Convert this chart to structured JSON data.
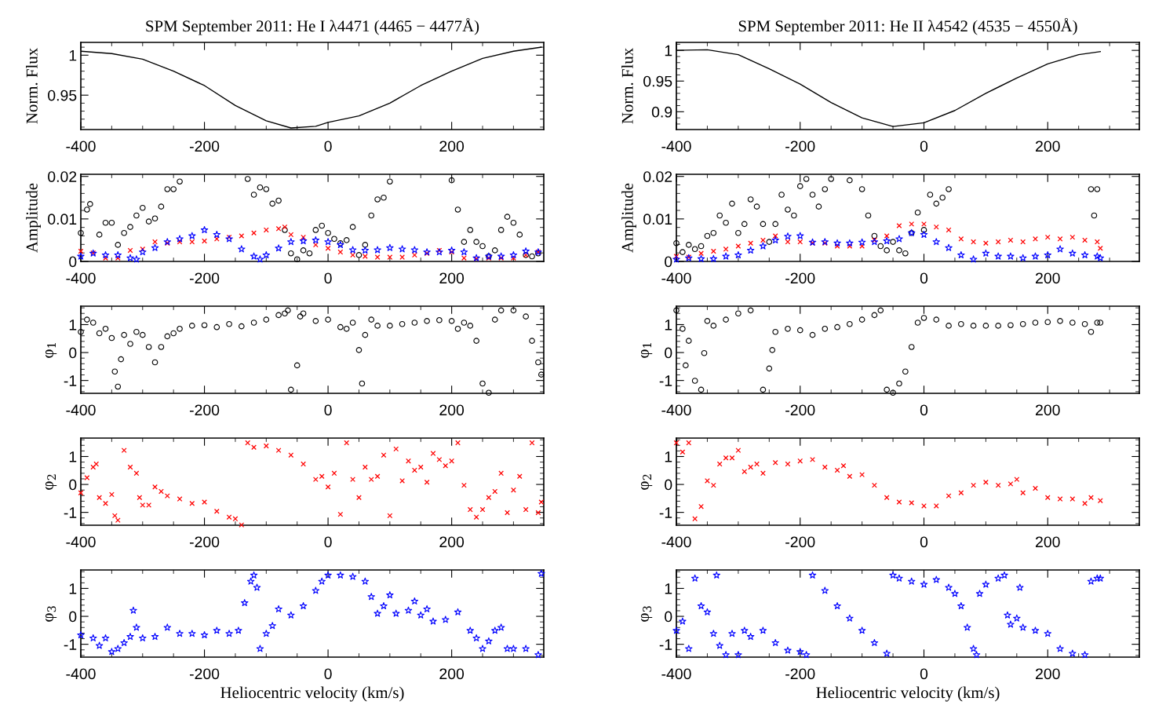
{
  "chart_data": [
    {
      "type": "line",
      "title": "SPM September 2011: He I λ4471 (4465 − 4477Å)",
      "ylabel": "Norm. Flux",
      "xlim": [
        -400,
        349
      ],
      "xticks": [
        -400,
        -200,
        0,
        200
      ],
      "ylim": [
        0.907,
        1.016
      ],
      "yticks": [
        0.95,
        1
      ],
      "series": [
        {
          "color": "#000000",
          "x": [
            -400,
            -350,
            -300,
            -250,
            -200,
            -150,
            -100,
            -60,
            -20,
            0,
            50,
            100,
            150,
            200,
            250,
            300,
            345
          ],
          "values": [
            1.005,
            1.002,
            0.995,
            0.98,
            0.962,
            0.937,
            0.918,
            0.909,
            0.911,
            0.916,
            0.924,
            0.94,
            0.962,
            0.98,
            0.996,
            1.005,
            1.01
          ]
        }
      ]
    },
    {
      "type": "scatter",
      "ylabel": "Amplitude",
      "xlim": [
        -400,
        349
      ],
      "xticks": [
        -400,
        -200,
        0,
        200
      ],
      "ylim": [
        0,
        0.0205
      ],
      "yticks": [
        0,
        0.01,
        0.02
      ],
      "series": [
        {
          "color": "#000000",
          "marker": "circle",
          "x": [
            -400,
            -390,
            -385,
            -370,
            -360,
            -350,
            -340,
            -330,
            -320,
            -310,
            -300,
            -290,
            -280,
            -270,
            -260,
            -250,
            -240,
            -130,
            -120,
            -110,
            -100,
            -90,
            -80,
            -70,
            -60,
            -50,
            -40,
            -30,
            -20,
            -10,
            0,
            10,
            20,
            30,
            40,
            50,
            60,
            70,
            80,
            90,
            100,
            200,
            210,
            220,
            230,
            240,
            250,
            260,
            270,
            280,
            290,
            300,
            310,
            320,
            330,
            340
          ],
          "values": [
            0.0067,
            0.0122,
            0.0135,
            0.0063,
            0.0091,
            0.0091,
            0.0039,
            0.0067,
            0.0081,
            0.0108,
            0.0126,
            0.0094,
            0.0101,
            0.0129,
            0.017,
            0.017,
            0.0188,
            0.0194,
            0.0157,
            0.0174,
            0.017,
            0.0136,
            0.0143,
            0.0074,
            0.0019,
            0.0005,
            0.0026,
            0.0019,
            0.0074,
            0.0084,
            0.0067,
            0.0053,
            0.0043,
            0.005,
            0.0081,
            0.0015,
            0.0039,
            0.0108,
            0.0146,
            0.015,
            0.0188,
            0.0191,
            0.0122,
            0.0046,
            0.0074,
            0.0046,
            0.0036,
            0.0012,
            0.0026,
            0.0074,
            0.0105,
            0.0091,
            0.0063,
            0.0015,
            0.0012,
            0.0019
          ]
        },
        {
          "color": "#ff0000",
          "marker": "cross",
          "x": [
            -400,
            -380,
            -360,
            -340,
            -320,
            -300,
            -280,
            -260,
            -240,
            -220,
            -200,
            -180,
            -160,
            -140,
            -120,
            -100,
            -80,
            -70,
            -60,
            -40,
            -20,
            0,
            20,
            40,
            60,
            80,
            100,
            120,
            140,
            160,
            180,
            200,
            220,
            240,
            260,
            280,
            300,
            320,
            340
          ],
          "values": [
            0.0024,
            0.002,
            0.0008,
            0.0008,
            0.0026,
            0.0029,
            0.0046,
            0.0043,
            0.0046,
            0.0046,
            0.0048,
            0.0053,
            0.0057,
            0.006,
            0.0067,
            0.0074,
            0.0077,
            0.0081,
            0.0063,
            0.0057,
            0.0039,
            0.0031,
            0.0022,
            0.0015,
            0.0012,
            0.001,
            0.001,
            0.001,
            0.0015,
            0.0019,
            0.0026,
            0.0022,
            0.0008,
            0.0006,
            0.0008,
            0.0008,
            0.0008,
            0.0015,
            0.0022
          ]
        },
        {
          "color": "#0000ff",
          "marker": "star",
          "x": [
            -400,
            -380,
            -360,
            -340,
            -320,
            -310,
            -300,
            -280,
            -260,
            -240,
            -220,
            -200,
            -180,
            -160,
            -140,
            -120,
            -110,
            -100,
            -80,
            -60,
            -40,
            -20,
            0,
            20,
            40,
            60,
            80,
            100,
            120,
            140,
            160,
            180,
            200,
            220,
            240,
            260,
            280,
            300,
            320,
            340
          ],
          "values": [
            0.0012,
            0.0019,
            0.0015,
            0.0015,
            0.0008,
            0.0005,
            0.0022,
            0.0032,
            0.0046,
            0.0053,
            0.006,
            0.0074,
            0.0063,
            0.0053,
            0.0029,
            0.0012,
            0.0005,
            0.0015,
            0.0031,
            0.0046,
            0.0048,
            0.005,
            0.0046,
            0.0039,
            0.0027,
            0.0026,
            0.0027,
            0.0032,
            0.0029,
            0.0027,
            0.0022,
            0.0022,
            0.0026,
            0.0022,
            0.0008,
            0.0012,
            0.0012,
            0.0015,
            0.0024,
            0.0022
          ]
        }
      ]
    },
    {
      "type": "scatter",
      "ylabel": "φ$_{1}$",
      "xlim": [
        -400,
        349
      ],
      "xticks": [
        -400,
        -200,
        0,
        200
      ],
      "ylim": [
        -1.46,
        1.66
      ],
      "yticks": [
        -1,
        0,
        1
      ],
      "series": [
        {
          "color": "#000000",
          "marker": "circle",
          "x": [
            -400,
            -390,
            -380,
            -370,
            -360,
            -350,
            -345,
            -340,
            -335,
            -330,
            -320,
            -310,
            -300,
            -290,
            -280,
            -270,
            -260,
            -250,
            -240,
            -220,
            -200,
            -180,
            -160,
            -140,
            -120,
            -100,
            -80,
            -70,
            -65,
            -60,
            -50,
            -45,
            -40,
            -20,
            0,
            20,
            30,
            40,
            50,
            55,
            60,
            70,
            80,
            100,
            120,
            140,
            160,
            180,
            200,
            210,
            220,
            230,
            240,
            250,
            260,
            270,
            280,
            300,
            320,
            330,
            340,
            345
          ],
          "values": [
            0.74,
            1.18,
            1.07,
            0.69,
            0.85,
            0.52,
            -0.68,
            -1.22,
            -0.24,
            0.63,
            0.31,
            0.74,
            0.63,
            0.2,
            -0.35,
            0.2,
            0.58,
            0.69,
            0.85,
            0.96,
            0.98,
            0.91,
            1.02,
            0.94,
            1.07,
            1.18,
            1.34,
            1.4,
            1.51,
            -1.33,
            -0.46,
            1.29,
            1.4,
            1.13,
            1.18,
            0.91,
            0.85,
            1.07,
            0.09,
            -1.11,
            0.63,
            1.18,
            0.96,
            0.96,
            1.02,
            1.07,
            1.13,
            1.16,
            1.13,
            0.85,
            1.07,
            0.96,
            0.42,
            -1.11,
            -1.44,
            1.18,
            1.51,
            1.51,
            1.29,
            0.42,
            -0.35,
            -0.79
          ]
        }
      ]
    },
    {
      "type": "scatter",
      "ylabel": "φ$_{2}$",
      "xlim": [
        -400,
        349
      ],
      "xticks": [
        -400,
        -200,
        0,
        200
      ],
      "ylim": [
        -1.46,
        1.66
      ],
      "yticks": [
        -1,
        0,
        1
      ],
      "series": [
        {
          "color": "#ff0000",
          "marker": "cross",
          "x": [
            -400,
            -390,
            -380,
            -375,
            -370,
            -360,
            -350,
            -345,
            -340,
            -330,
            -320,
            -310,
            -305,
            -300,
            -290,
            -280,
            -270,
            -260,
            -240,
            -220,
            -200,
            -180,
            -160,
            -150,
            -140,
            -130,
            -120,
            -100,
            -80,
            -60,
            -40,
            -20,
            -10,
            0,
            10,
            20,
            30,
            40,
            50,
            60,
            70,
            80,
            90,
            100,
            110,
            120,
            130,
            140,
            150,
            160,
            170,
            180,
            190,
            200,
            210,
            220,
            230,
            240,
            250,
            260,
            270,
            280,
            290,
            300,
            310,
            320,
            330,
            340,
            345
          ],
          "values": [
            -0.3,
            0.24,
            0.62,
            0.73,
            -0.47,
            -0.68,
            -0.36,
            -1.12,
            -1.28,
            1.22,
            0.62,
            0.4,
            -0.47,
            -0.74,
            -0.74,
            -0.09,
            -0.25,
            -0.41,
            -0.52,
            -0.68,
            -0.63,
            -0.96,
            -1.17,
            -1.23,
            -1.45,
            1.49,
            1.33,
            1.38,
            1.22,
            1.05,
            0.73,
            0.18,
            0.29,
            -0.09,
            0.4,
            -1.07,
            1.49,
            0.18,
            -0.47,
            0.62,
            0.18,
            0.29,
            1.05,
            -1.12,
            1.27,
            0.13,
            0.84,
            0.51,
            0.62,
            0.08,
            1.11,
            0.89,
            0.67,
            0.84,
            1.49,
            -0.03,
            -0.9,
            -1.17,
            -0.9,
            -0.47,
            -0.25,
            0.4,
            -1.01,
            -0.2,
            0.29,
            -0.9,
            1.49,
            -1.01,
            -0.63
          ]
        }
      ]
    },
    {
      "type": "scatter",
      "ylabel": "φ$_{3}$",
      "xlabel": "Heliocentric velocity (km/s)",
      "xlim": [
        -400,
        349
      ],
      "xticks": [
        -400,
        -200,
        0,
        200
      ],
      "ylim": [
        -1.46,
        1.66
      ],
      "yticks": [
        -1,
        0,
        1
      ],
      "series": [
        {
          "color": "#0000ff",
          "marker": "star",
          "x": [
            -400,
            -380,
            -370,
            -360,
            -350,
            -340,
            -330,
            -320,
            -315,
            -310,
            -300,
            -280,
            -260,
            -240,
            -220,
            -200,
            -180,
            -160,
            -145,
            -135,
            -125,
            -120,
            -115,
            -110,
            -100,
            -90,
            -80,
            -60,
            -40,
            -20,
            -10,
            0,
            20,
            40,
            60,
            70,
            80,
            90,
            100,
            110,
            130,
            140,
            150,
            160,
            170,
            190,
            210,
            230,
            240,
            250,
            260,
            270,
            280,
            290,
            300,
            320,
            340,
            345
          ],
          "values": [
            -0.67,
            -0.78,
            -1.05,
            -0.78,
            -1.27,
            -1.16,
            -0.95,
            -0.73,
            0.21,
            -0.4,
            -0.78,
            -0.73,
            -0.4,
            -0.62,
            -0.62,
            -0.67,
            -0.51,
            -0.62,
            -0.51,
            0.48,
            1.25,
            1.47,
            1.03,
            -1.16,
            -0.62,
            -0.34,
            0.26,
            0.04,
            0.37,
            0.92,
            1.25,
            1.47,
            1.47,
            1.42,
            1.25,
            0.7,
            0.1,
            0.37,
            0.76,
            0.1,
            0.21,
            0.54,
            0.04,
            0.26,
            -0.18,
            -0.12,
            0.15,
            -0.51,
            -0.78,
            -1.16,
            -0.89,
            -0.51,
            -0.4,
            -1.16,
            -1.16,
            -1.16,
            -1.38,
            1.53
          ]
        }
      ]
    },
    {
      "type": "line",
      "title": "SPM September 2011: He II λ4542 (4535 − 4550Å)",
      "ylabel": "Norm. Flux",
      "xlim": [
        -400,
        348
      ],
      "xticks": [
        -400,
        -200,
        0,
        200
      ],
      "ylim": [
        0.871,
        1.013
      ],
      "yticks": [
        0.9,
        0.95,
        1
      ],
      "series": [
        {
          "color": "#000000",
          "x": [
            -400,
            -350,
            -300,
            -250,
            -200,
            -150,
            -100,
            -50,
            0,
            50,
            100,
            150,
            200,
            250,
            285
          ],
          "values": [
            1.0,
            1.001,
            0.993,
            0.97,
            0.945,
            0.915,
            0.89,
            0.876,
            0.882,
            0.902,
            0.93,
            0.955,
            0.978,
            0.993,
            0.998
          ]
        }
      ]
    },
    {
      "type": "scatter",
      "ylabel": "Amplitude",
      "xlim": [
        -400,
        348
      ],
      "xticks": [
        -400,
        -200,
        0,
        200
      ],
      "ylim": [
        0,
        0.0205
      ],
      "yticks": [
        0,
        0.01,
        0.02
      ],
      "series": [
        {
          "color": "#000000",
          "marker": "circle",
          "x": [
            -400,
            -390,
            -380,
            -370,
            -360,
            -350,
            -340,
            -330,
            -320,
            -310,
            -300,
            -290,
            -280,
            -270,
            -260,
            -250,
            -240,
            -230,
            -220,
            -210,
            -200,
            -190,
            -180,
            -170,
            -160,
            -150,
            -120,
            -100,
            -90,
            -80,
            -70,
            -60,
            -50,
            -40,
            -30,
            -20,
            -10,
            0,
            10,
            20,
            30,
            40,
            270,
            275,
            280
          ],
          "values": [
            0.0043,
            0.0022,
            0.0039,
            0.0029,
            0.0036,
            0.006,
            0.0067,
            0.0108,
            0.0091,
            0.0136,
            0.0067,
            0.0088,
            0.0146,
            0.0129,
            0.0088,
            0.0046,
            0.0088,
            0.0157,
            0.0122,
            0.0108,
            0.0177,
            0.0194,
            0.0157,
            0.0129,
            0.017,
            0.0194,
            0.0191,
            0.017,
            0.0108,
            0.006,
            0.0036,
            0.0026,
            0.0046,
            0.0026,
            0.0019,
            0.0067,
            0.0115,
            0.0074,
            0.0157,
            0.0136,
            0.015,
            0.017,
            0.017,
            0.0108,
            0.017
          ]
        },
        {
          "color": "#ff0000",
          "marker": "cross",
          "x": [
            -400,
            -380,
            -360,
            -340,
            -320,
            -300,
            -280,
            -260,
            -240,
            -220,
            -200,
            -180,
            -160,
            -140,
            -120,
            -100,
            -80,
            -60,
            -40,
            -20,
            0,
            20,
            40,
            60,
            80,
            100,
            120,
            140,
            160,
            180,
            200,
            220,
            240,
            260,
            280,
            285
          ],
          "values": [
            0.0012,
            0.001,
            0.0019,
            0.0024,
            0.0029,
            0.0036,
            0.0043,
            0.005,
            0.006,
            0.0046,
            0.0046,
            0.0043,
            0.0043,
            0.0036,
            0.0036,
            0.0036,
            0.005,
            0.006,
            0.0084,
            0.0088,
            0.0088,
            0.0081,
            0.0074,
            0.0053,
            0.0046,
            0.0043,
            0.0046,
            0.005,
            0.0046,
            0.0053,
            0.0057,
            0.0053,
            0.0057,
            0.005,
            0.0046,
            0.0031
          ]
        },
        {
          "color": "#0000ff",
          "marker": "star",
          "x": [
            -400,
            -380,
            -360,
            -340,
            -320,
            -300,
            -280,
            -260,
            -240,
            -220,
            -200,
            -180,
            -160,
            -140,
            -120,
            -100,
            -80,
            -60,
            -40,
            -20,
            0,
            20,
            40,
            60,
            80,
            100,
            120,
            140,
            160,
            180,
            200,
            220,
            240,
            260,
            280,
            285
          ],
          "values": [
            0.0005,
            0.0008,
            0.0006,
            0.0006,
            0.0012,
            0.0015,
            0.0026,
            0.0036,
            0.005,
            0.0059,
            0.006,
            0.0045,
            0.0046,
            0.0043,
            0.0043,
            0.0045,
            0.0046,
            0.0048,
            0.0053,
            0.0067,
            0.0063,
            0.0046,
            0.0032,
            0.0015,
            0.0005,
            0.0019,
            0.0012,
            0.0012,
            0.0008,
            0.0012,
            0.0015,
            0.0029,
            0.0019,
            0.0015,
            0.0012,
            0.0008
          ]
        }
      ]
    },
    {
      "type": "scatter",
      "ylabel": "φ$_{1}$",
      "xlim": [
        -400,
        348
      ],
      "xticks": [
        -400,
        -200,
        0,
        200
      ],
      "ylim": [
        -1.46,
        1.66
      ],
      "yticks": [
        -1,
        0,
        1
      ],
      "series": [
        {
          "color": "#000000",
          "marker": "circle",
          "x": [
            -400,
            -390,
            -385,
            -380,
            -370,
            -360,
            -355,
            -350,
            -340,
            -320,
            -300,
            -280,
            -260,
            -250,
            -245,
            -240,
            -220,
            -200,
            -180,
            -160,
            -140,
            -120,
            -100,
            -80,
            -70,
            -60,
            -50,
            -40,
            -30,
            -20,
            -10,
            0,
            20,
            40,
            60,
            80,
            100,
            120,
            140,
            160,
            180,
            200,
            220,
            240,
            260,
            270,
            280,
            285
          ],
          "values": [
            1.51,
            0.85,
            -0.46,
            0.42,
            -1.01,
            -1.33,
            -0.02,
            1.13,
            0.96,
            1.18,
            1.4,
            1.51,
            -1.33,
            -0.57,
            0.09,
            0.74,
            0.85,
            0.8,
            0.63,
            0.85,
            0.91,
            1.02,
            1.18,
            1.34,
            1.51,
            -1.33,
            -1.44,
            -1.11,
            -0.68,
            0.2,
            1.07,
            1.24,
            1.18,
            0.96,
            1.02,
            0.96,
            0.96,
            0.96,
            0.98,
            1.02,
            1.07,
            1.09,
            1.13,
            1.07,
            1.02,
            0.74,
            1.07,
            1.07
          ]
        }
      ]
    },
    {
      "type": "scatter",
      "ylabel": "φ$_{2}$",
      "xlim": [
        -400,
        348
      ],
      "xticks": [
        -400,
        -200,
        0,
        200
      ],
      "ylim": [
        -1.46,
        1.66
      ],
      "yticks": [
        -1,
        0,
        1
      ],
      "series": [
        {
          "color": "#ff0000",
          "marker": "cross",
          "x": [
            -400,
            -390,
            -380,
            -370,
            -360,
            -350,
            -340,
            -330,
            -320,
            -310,
            -300,
            -290,
            -280,
            -270,
            -260,
            -240,
            -220,
            -200,
            -180,
            -160,
            -140,
            -130,
            -120,
            -100,
            -80,
            -60,
            -40,
            -20,
            0,
            20,
            40,
            60,
            80,
            100,
            120,
            140,
            150,
            160,
            180,
            200,
            220,
            240,
            260,
            270,
            285
          ],
          "values": [
            1.49,
            1.16,
            1.49,
            -1.23,
            -0.79,
            0.13,
            -0.03,
            0.73,
            0.95,
            0.95,
            1.22,
            0.46,
            0.62,
            0.73,
            0.4,
            0.78,
            0.73,
            0.84,
            0.89,
            0.62,
            0.51,
            0.67,
            0.29,
            0.35,
            -0.03,
            -0.47,
            -0.63,
            -0.66,
            -0.77,
            -0.77,
            -0.41,
            -0.3,
            -0.03,
            0.08,
            -0.03,
            0.02,
            0.18,
            -0.3,
            -0.14,
            -0.47,
            -0.52,
            -0.52,
            -0.68,
            -0.47,
            -0.58
          ]
        }
      ]
    },
    {
      "type": "scatter",
      "ylabel": "φ$_{3}$",
      "xlabel": "Heliocentric velocity (km/s)",
      "xlim": [
        -400,
        348
      ],
      "xticks": [
        -400,
        -200,
        0,
        200
      ],
      "ylim": [
        -1.46,
        1.66
      ],
      "yticks": [
        -1,
        0,
        1
      ],
      "series": [
        {
          "color": "#0000ff",
          "marker": "star",
          "x": [
            -400,
            -390,
            -380,
            -370,
            -360,
            -350,
            -340,
            -335,
            -330,
            -320,
            -310,
            -300,
            -290,
            -280,
            -260,
            -240,
            -220,
            -200,
            -190,
            -180,
            -160,
            -140,
            -120,
            -100,
            -80,
            -60,
            -50,
            -40,
            -20,
            0,
            20,
            40,
            50,
            60,
            70,
            80,
            85,
            90,
            100,
            120,
            130,
            135,
            140,
            150,
            155,
            160,
            180,
            200,
            220,
            240,
            260,
            270,
            280,
            285
          ],
          "values": [
            -0.51,
            -0.18,
            -1.16,
            1.36,
            0.37,
            0.15,
            -0.62,
            1.47,
            -1.05,
            -1.38,
            -0.62,
            -1.38,
            -0.51,
            -0.73,
            -0.51,
            -0.95,
            -1.22,
            -1.27,
            -1.38,
            1.47,
            0.92,
            0.37,
            -0.07,
            -0.51,
            -0.95,
            -1.33,
            1.47,
            1.36,
            1.25,
            1.14,
            1.31,
            1.03,
            0.81,
            0.37,
            -0.4,
            -1.16,
            -1.38,
            0.81,
            1.14,
            1.36,
            1.47,
            0.04,
            -0.29,
            -0.07,
            1.03,
            -0.4,
            -0.51,
            -0.62,
            -1.16,
            -1.33,
            -1.38,
            1.25,
            1.36,
            1.36
          ]
        }
      ]
    }
  ]
}
